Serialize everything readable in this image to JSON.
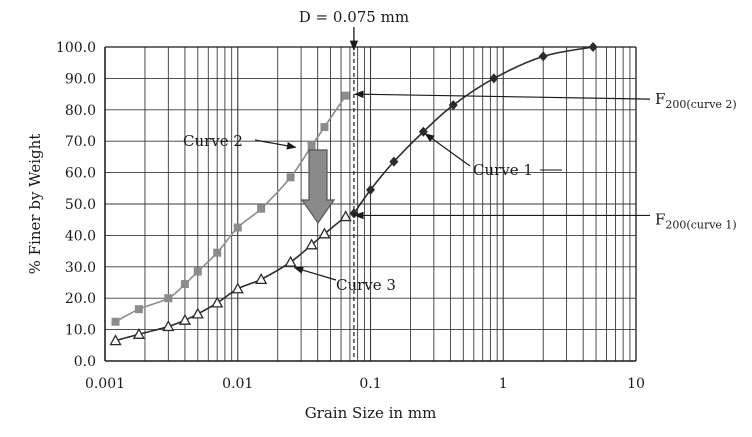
{
  "chart_data": {
    "type": "scatter",
    "title": "",
    "xlabel": "Grain Size in mm",
    "ylabel": "% Finer by Weight",
    "xscale": "log",
    "xlim": [
      0.001,
      10
    ],
    "ylim": [
      0,
      100
    ],
    "grid": true,
    "xticks": [
      0.001,
      0.01,
      0.1,
      1,
      10
    ],
    "xtick_labels": [
      "0.001",
      "0.01",
      "0.1",
      "1",
      "10"
    ],
    "yticks": [
      0,
      10,
      20,
      30,
      40,
      50,
      60,
      70,
      80,
      90,
      100
    ],
    "ytick_labels": [
      "0.0",
      "10.0",
      "20.0",
      "30.0",
      "40.0",
      "50.0",
      "60.0",
      "70.0",
      "80.0",
      "90.0",
      "100.0"
    ],
    "series": [
      {
        "name": "Curve 1",
        "marker": "diamond",
        "color": "#2b2b2b",
        "x": [
          0.075,
          0.1,
          0.15,
          0.25,
          0.42,
          0.85,
          2.0,
          4.75
        ],
        "y": [
          47,
          54.5,
          63.5,
          73,
          81.5,
          90,
          97,
          100
        ]
      },
      {
        "name": "Curve 2",
        "marker": "square",
        "color": "#8c8c8c",
        "x": [
          0.0012,
          0.0018,
          0.003,
          0.004,
          0.005,
          0.007,
          0.01,
          0.015,
          0.025,
          0.036,
          0.045,
          0.065
        ],
        "y": [
          12.5,
          16.5,
          20,
          24.5,
          28.5,
          34.5,
          42.5,
          48.5,
          58.5,
          68.5,
          74.5,
          84.5
        ]
      },
      {
        "name": "Curve 3",
        "marker": "triangle",
        "color": "#2b2b2b",
        "x": [
          0.0012,
          0.0018,
          0.003,
          0.004,
          0.005,
          0.007,
          0.01,
          0.015,
          0.025,
          0.036,
          0.045,
          0.065
        ],
        "y": [
          6.5,
          8.5,
          11,
          13,
          15,
          18.5,
          23,
          26,
          31.5,
          37,
          40.5,
          46
        ]
      }
    ],
    "annotations": {
      "d_label": "D = 0.075 mm",
      "d_value": 0.075,
      "f200_prefix": "F",
      "f200_curve2_sub": "200(curve 2)",
      "f200_curve2_value": 85,
      "f200_curve1_sub": "200(curve 1)",
      "f200_curve1_value": 47,
      "curve1_label": "Curve 1",
      "curve2_label": "Curve 2",
      "curve3_label": "Curve 3"
    }
  },
  "colors": {
    "axis": "#1a1a1a",
    "grid": "#3a3a3a",
    "curve2": "#8c8c8c",
    "arrow_fill": "#8a8a8a",
    "arrow_stroke": "#555555"
  }
}
